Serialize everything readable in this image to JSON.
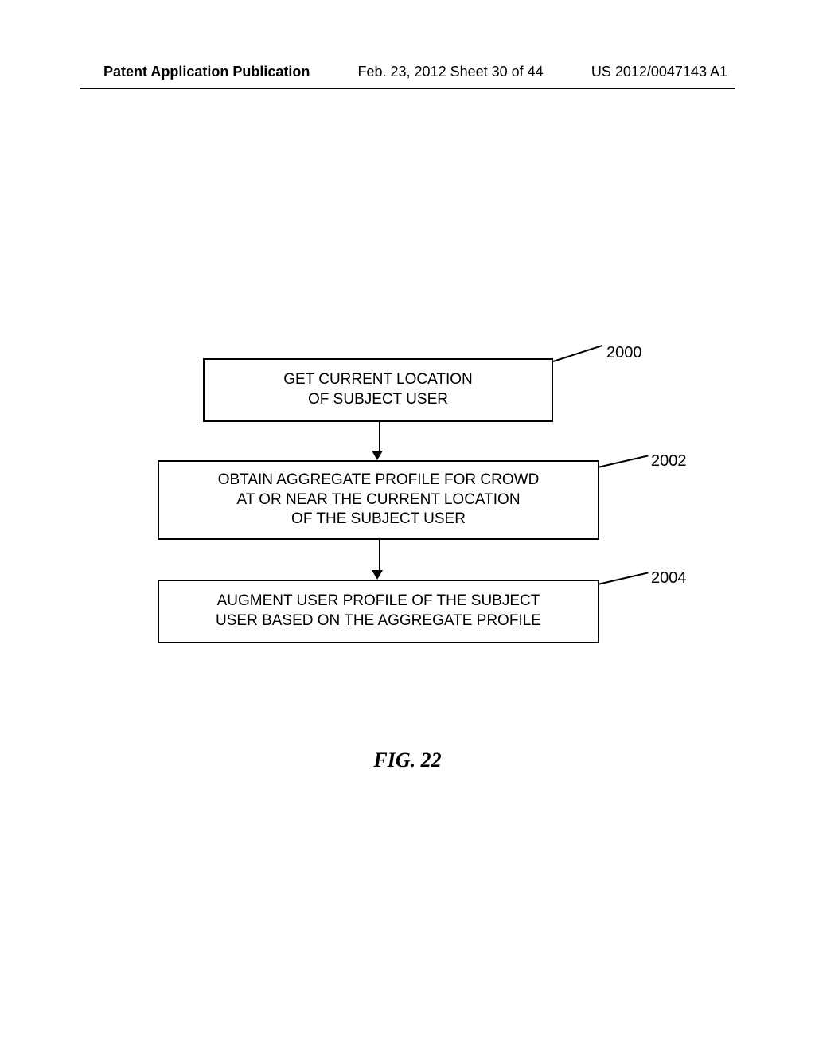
{
  "header": {
    "left": "Patent Application Publication",
    "center": "Feb. 23, 2012  Sheet 30 of 44",
    "right": "US 2012/0047143 A1"
  },
  "flowchart": {
    "type": "flowchart",
    "nodes": [
      {
        "id": "box1",
        "ref": "2000",
        "text": "GET CURRENT LOCATION\nOF SUBJECT USER"
      },
      {
        "id": "box2",
        "ref": "2002",
        "text": "OBTAIN AGGREGATE PROFILE FOR CROWD\nAT OR NEAR THE CURRENT LOCATION\nOF THE SUBJECT USER"
      },
      {
        "id": "box3",
        "ref": "2004",
        "text": "AUGMENT USER PROFILE OF THE SUBJECT\nUSER BASED ON THE AGGREGATE PROFILE"
      }
    ],
    "edges": [
      {
        "from": "box1",
        "to": "box2"
      },
      {
        "from": "box2",
        "to": "box3"
      }
    ],
    "box_border_color": "#000000",
    "box_background": "#ffffff",
    "node_fontsize": 19,
    "ref_fontsize": 20
  },
  "figure_label": "FIG. 22",
  "colors": {
    "background": "#ffffff",
    "text": "#000000",
    "border": "#000000"
  }
}
